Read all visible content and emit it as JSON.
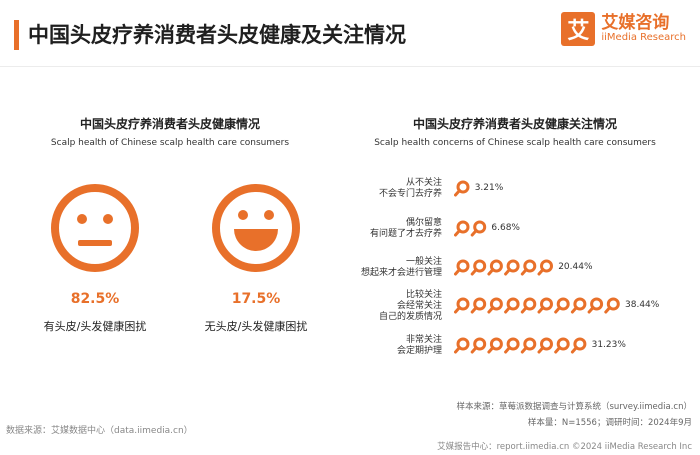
{
  "header": {
    "title": "中国头皮疗养消费者头皮健康及关注情况",
    "logo_mark": "艾",
    "logo_cn": "艾媒咨询",
    "logo_en": "iiMedia Research"
  },
  "chart_data": [
    {
      "type": "pie",
      "title": "中国头皮疗养消费者头皮健康情况",
      "subtitle": "Scalp health of Chinese scalp health care consumers",
      "categories": [
        "有头皮/头发健康困扰",
        "无头皮/头发健康困扰"
      ],
      "values": [
        82.5,
        17.5
      ],
      "value_labels": [
        "82.5%",
        "17.5%"
      ],
      "icons": [
        "neutral-face-icon",
        "smiling-face-icon"
      ]
    },
    {
      "type": "bar",
      "title": "中国头皮疗养消费者头皮健康关注情况",
      "subtitle": "Scalp health concerns of Chinese scalp health care consumers",
      "categories": [
        [
          "从不关注",
          "不会专门去疗养"
        ],
        [
          "偶尔留意",
          "有问题了才去疗养"
        ],
        [
          "一般关注",
          "想起来才会进行管理"
        ],
        [
          "比较关注",
          "会经常关注",
          "自己的发质情况"
        ],
        [
          "非常关注",
          "会定期护理"
        ]
      ],
      "values": [
        3.21,
        6.68,
        20.44,
        38.44,
        31.23
      ],
      "value_labels": [
        "3.21%",
        "6.68%",
        "20.44%",
        "38.44%",
        "31.23%"
      ],
      "icon": "magnifier-icon"
    }
  ],
  "footer": {
    "data_source": "数据来源：艾媒数据中心（data.iimedia.cn）",
    "sample_source": "样本来源：草莓派数据调查与计算系统（survey.iimedia.cn）",
    "sample_size": "样本量：N=1556；调研时间：2024年9月",
    "report_credit": "艾媒报告中心：report.iimedia.cn  ©2024  iiMedia Research  Inc"
  },
  "colors": {
    "accent": "#e8702a"
  }
}
